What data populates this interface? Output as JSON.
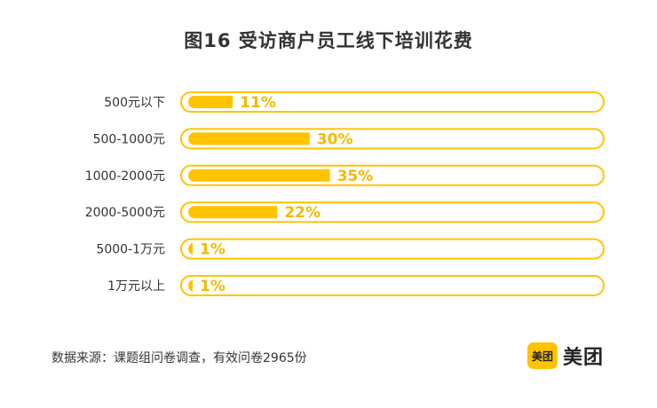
{
  "chart_data": {
    "type": "bar",
    "orientation": "horizontal",
    "title": "图16  受访商户员工线下培训花费",
    "categories": [
      "500元以下",
      "500-1000元",
      "1000-2000元",
      "2000-5000元",
      "5000-1万元",
      "1万元以上"
    ],
    "values": [
      11,
      30,
      35,
      22,
      1,
      1
    ],
    "value_labels": [
      "11%",
      "30%",
      "35%",
      "22%",
      "1%",
      "1%"
    ],
    "value_unit": "%",
    "xlim": [
      0,
      100
    ],
    "grid": false,
    "bar_color": "#ffc300",
    "label_color": "#f5b800"
  },
  "footer": {
    "source": "数据来源：课题组问卷调查，有效问卷2965份"
  },
  "brand": {
    "badge_text": "美团",
    "name": "美团",
    "color": "#ffc300"
  }
}
